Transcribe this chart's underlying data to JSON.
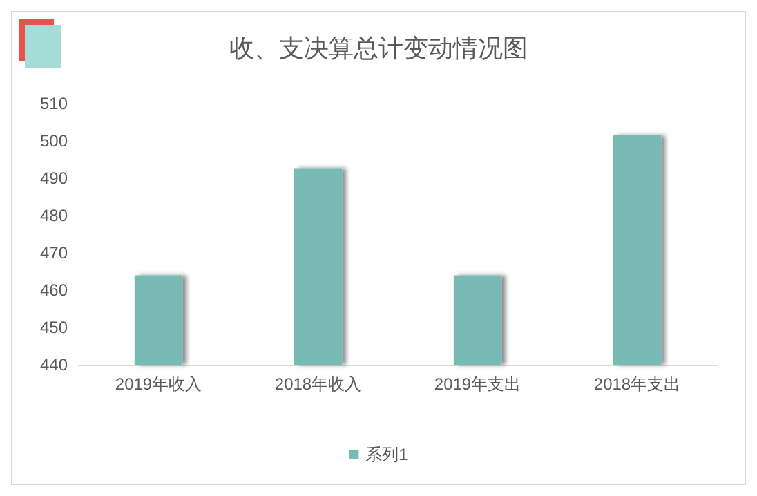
{
  "chart_data": {
    "type": "bar",
    "title": "收、支决算总计变动情况图",
    "categories": [
      "2019年收入",
      "2018年收入",
      "2019年支出",
      "2018年支出"
    ],
    "series": [
      {
        "name": "系列1",
        "color": "#78bbb4",
        "values": [
          464,
          492.7,
          464,
          501.5
        ]
      }
    ],
    "ylim": [
      440,
      510
    ],
    "yticks": [
      440,
      450,
      460,
      470,
      480,
      490,
      500,
      510
    ],
    "grid": false,
    "legend": "bottom"
  }
}
